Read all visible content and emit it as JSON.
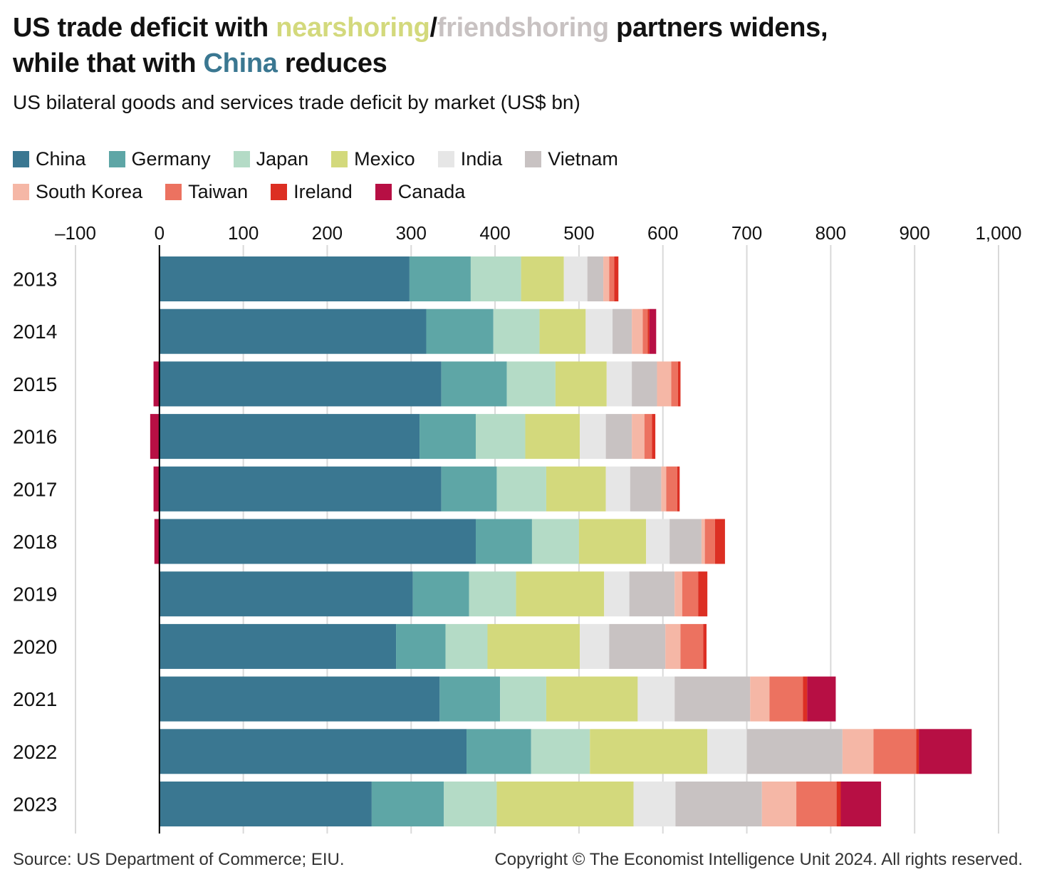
{
  "title": {
    "line1_before": "US trade deficit with ",
    "line1_near": "nearshoring",
    "line1_slash": "/",
    "line1_friend": "friendshoring",
    "line1_after": " partners widens,",
    "line2_before": "while that with ",
    "line2_china": "China",
    "line2_after": " reduces"
  },
  "subtitle": "US bilateral goods and services trade deficit by market (US$ bn)",
  "footer": {
    "source": "Source: US Department of Commerce; EIU.",
    "copyright": "Copyright © The Economist Intelligence Unit 2024. All rights reserved."
  },
  "colors": {
    "China": "#3a7791",
    "Germany": "#5ea6a6",
    "Japan": "#b4dbc6",
    "Mexico": "#d3d97c",
    "India": "#e6e6e6",
    "Vietnam": "#c8c2c2",
    "South Korea": "#f5b7a6",
    "Taiwan": "#ec7260",
    "Ireland": "#dc2f23",
    "Canada": "#b70f44",
    "title_near": "#d3d97c",
    "title_friend": "#c8c2c2",
    "title_china": "#3a7791"
  },
  "chart_data": {
    "type": "bar",
    "orientation": "horizontal",
    "stacked": true,
    "title": "US trade deficit with nearshoring/friendshoring partners widens, while that with China reduces",
    "subtitle": "US bilateral goods and services trade deficit by market (US$ bn)",
    "xlim": [
      -100,
      1000
    ],
    "xticks": [
      -100,
      0,
      100,
      200,
      300,
      400,
      500,
      600,
      700,
      800,
      900,
      1000
    ],
    "xtick_labels": [
      "–100",
      "0",
      "100",
      "200",
      "300",
      "400",
      "500",
      "600",
      "700",
      "800",
      "900",
      "1,000"
    ],
    "grid": true,
    "legend_position": "top",
    "categories": [
      "2013",
      "2014",
      "2015",
      "2016",
      "2017",
      "2018",
      "2019",
      "2020",
      "2021",
      "2022",
      "2023"
    ],
    "series": [
      {
        "name": "China",
        "values": [
          298,
          318,
          336,
          310,
          336,
          377,
          302,
          282,
          334,
          366,
          253
        ]
      },
      {
        "name": "Germany",
        "values": [
          73,
          80,
          78,
          67,
          66,
          67,
          67,
          59,
          72,
          77,
          86
        ]
      },
      {
        "name": "Japan",
        "values": [
          60,
          55,
          58,
          59,
          59,
          56,
          56,
          50,
          55,
          70,
          63
        ]
      },
      {
        "name": "Mexico",
        "values": [
          51,
          55,
          61,
          65,
          71,
          80,
          105,
          110,
          109,
          140,
          163
        ]
      },
      {
        "name": "India",
        "values": [
          28,
          32,
          30,
          31,
          29,
          28,
          30,
          35,
          44,
          47,
          50
        ]
      },
      {
        "name": "Vietnam",
        "values": [
          19,
          23,
          30,
          31,
          37,
          38,
          54,
          67,
          90,
          114,
          103
        ]
      },
      {
        "name": "South Korea",
        "values": [
          7,
          13,
          17,
          15,
          6,
          4,
          9,
          18,
          23,
          37,
          41
        ]
      },
      {
        "name": "Taiwan",
        "values": [
          6,
          6,
          8,
          9,
          13,
          12,
          19,
          27,
          40,
          51,
          48
        ]
      },
      {
        "name": "Ireland",
        "values": [
          5,
          2,
          3,
          4,
          3,
          12,
          11,
          4,
          5,
          3,
          5
        ]
      },
      {
        "name": "Canada",
        "values": [
          0,
          8,
          -7,
          -11,
          -7,
          -6,
          0,
          0,
          34,
          63,
          48
        ]
      }
    ]
  }
}
